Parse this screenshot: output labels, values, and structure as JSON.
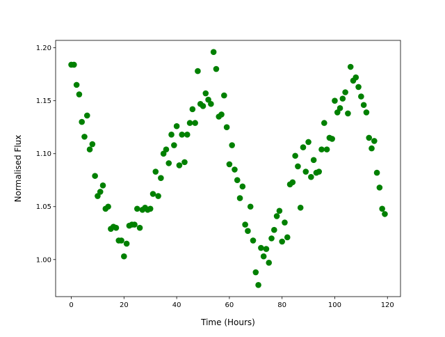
{
  "chart_data": {
    "type": "scatter",
    "x_label": "Time (Hours)",
    "y_label": "Normalised Flux",
    "color": "#008000",
    "xlim": [
      -5.95,
      124.95
    ],
    "ylim": [
      0.965,
      1.207
    ],
    "xticks": [
      0,
      20,
      40,
      60,
      80,
      100,
      120
    ],
    "yticks": [
      {
        "value": 1.0,
        "label": "1.00"
      },
      {
        "value": 1.05,
        "label": "1.05"
      },
      {
        "value": 1.1,
        "label": "1.10"
      },
      {
        "value": 1.15,
        "label": "1.15"
      },
      {
        "value": 1.2,
        "label": "1.20"
      }
    ],
    "x": [
      0,
      1,
      2,
      3,
      4,
      5,
      6,
      7,
      8,
      9,
      10,
      11,
      12,
      13,
      14,
      15,
      16,
      17,
      18,
      19,
      20,
      21,
      22,
      23,
      24,
      25,
      26,
      27,
      28,
      29,
      30,
      31,
      32,
      33,
      34,
      35,
      36,
      37,
      38,
      39,
      40,
      41,
      42,
      43,
      44,
      45,
      46,
      47,
      48,
      49,
      50,
      51,
      52,
      53,
      54,
      55,
      56,
      57,
      58,
      59,
      60,
      61,
      62,
      63,
      64,
      65,
      66,
      67,
      68,
      69,
      70,
      71,
      72,
      73,
      74,
      75,
      76,
      77,
      78,
      79,
      80,
      81,
      82,
      83,
      84,
      85,
      86,
      87,
      88,
      89,
      90,
      91,
      92,
      93,
      94,
      95,
      96,
      97,
      98,
      99,
      100,
      101,
      102,
      103,
      104,
      105,
      106,
      107,
      108,
      109,
      110,
      111,
      112,
      113,
      114,
      115,
      116,
      117,
      118,
      119
    ],
    "values": [
      1.184,
      1.184,
      1.165,
      1.156,
      1.13,
      1.116,
      1.136,
      1.104,
      1.109,
      1.079,
      1.06,
      1.064,
      1.07,
      1.048,
      1.05,
      1.029,
      1.031,
      1.03,
      1.018,
      1.018,
      1.003,
      1.015,
      1.032,
      1.033,
      1.033,
      1.048,
      1.03,
      1.047,
      1.049,
      1.047,
      1.048,
      1.062,
      1.083,
      1.06,
      1.077,
      1.1,
      1.104,
      1.091,
      1.118,
      1.108,
      1.126,
      1.089,
      1.118,
      1.092,
      1.118,
      1.129,
      1.142,
      1.129,
      1.178,
      1.147,
      1.145,
      1.157,
      1.151,
      1.147,
      1.196,
      1.18,
      1.135,
      1.137,
      1.155,
      1.125,
      1.09,
      1.108,
      1.085,
      1.075,
      1.058,
      1.069,
      1.033,
      1.027,
      1.05,
      1.018,
      0.988,
      0.976,
      1.011,
      1.003,
      1.01,
      0.997,
      1.02,
      1.028,
      1.041,
      1.046,
      1.017,
      1.035,
      1.021,
      1.071,
      1.073,
      1.098,
      1.088,
      1.049,
      1.106,
      1.083,
      1.111,
      1.078,
      1.094,
      1.082,
      1.083,
      1.104,
      1.129,
      1.104,
      1.115,
      1.114,
      1.15,
      1.139,
      1.143,
      1.152,
      1.158,
      1.138,
      1.182,
      1.169,
      1.172,
      1.163,
      1.154,
      1.146,
      1.139,
      1.115,
      1.105,
      1.112,
      1.082,
      1.068,
      1.048,
      1.043
    ]
  }
}
